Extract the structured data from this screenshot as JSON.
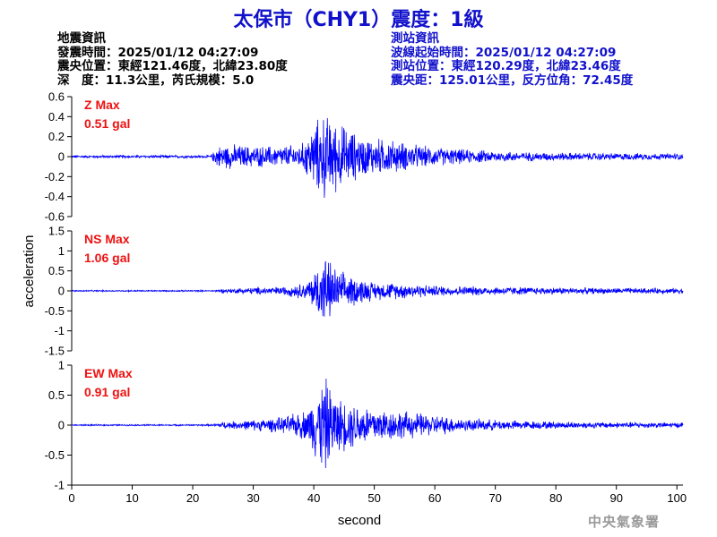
{
  "title": "太保市（CHY1）震度：1級",
  "quake_info": {
    "heading": "地震資訊",
    "origin_time": "發震時間：2025/01/12 04:27:09",
    "epicenter": "震央位置：東經121.46度，北緯23.80度",
    "depth_magnitude": "深　度：11.3公里，芮氏規模：5.0"
  },
  "station_info": {
    "heading": "測站資訊",
    "wave_start": "波線起始時間：2025/01/12 04:27:09",
    "station_location": "測站位置：東經120.29度，北緯23.46度",
    "distance": "震央距：125.01公里，反方位角：72.45度"
  },
  "agency": "中央氣象署",
  "colors": {
    "title": "#1111cc",
    "trace": "#0000ff",
    "max_label": "#ee1111",
    "station_info": "#1111cc"
  },
  "chart_data": {
    "type": "line",
    "xlabel": "second",
    "ylabel": "acceleration",
    "xlim": [
      0,
      101
    ],
    "x_ticks": [
      0,
      10,
      20,
      30,
      40,
      50,
      60,
      70,
      80,
      90,
      100
    ],
    "panels": [
      {
        "component": "Z",
        "max_name": "Z Max",
        "max_value": "0.51 gal",
        "ylim": [
          -0.6,
          0.6
        ],
        "y_ticks": [
          0.6,
          0.4,
          0.2,
          0,
          -0.2,
          -0.4,
          -0.6
        ],
        "y_tick_labels": [
          "0.6",
          "0.4",
          "0.2",
          "0",
          "-0.2",
          "-0.4",
          "-0.6"
        ],
        "envelope": [
          [
            0,
            0.015
          ],
          [
            23,
            0.015
          ],
          [
            24,
            0.12
          ],
          [
            26,
            0.14
          ],
          [
            30,
            0.12
          ],
          [
            34,
            0.12
          ],
          [
            38,
            0.14
          ],
          [
            40,
            0.35
          ],
          [
            41.5,
            0.5
          ],
          [
            43,
            0.42
          ],
          [
            45,
            0.35
          ],
          [
            48,
            0.22
          ],
          [
            52,
            0.2
          ],
          [
            58,
            0.12
          ],
          [
            65,
            0.08
          ],
          [
            75,
            0.05
          ],
          [
            90,
            0.04
          ],
          [
            101,
            0.035
          ]
        ]
      },
      {
        "component": "NS",
        "max_name": "NS Max",
        "max_value": "1.06 gal",
        "ylim": [
          -1.5,
          1.5
        ],
        "y_ticks": [
          1.5,
          1,
          0.5,
          0,
          -0.5,
          -1,
          -1.5
        ],
        "y_tick_labels": [
          "1.5",
          "1",
          "0.5",
          "0",
          "-0.5",
          "-1",
          "-1.5"
        ],
        "envelope": [
          [
            0,
            0.02
          ],
          [
            23,
            0.02
          ],
          [
            25,
            0.05
          ],
          [
            30,
            0.1
          ],
          [
            35,
            0.12
          ],
          [
            39,
            0.25
          ],
          [
            41,
            0.85
          ],
          [
            42,
            1.0
          ],
          [
            44,
            0.55
          ],
          [
            47,
            0.4
          ],
          [
            50,
            0.25
          ],
          [
            55,
            0.22
          ],
          [
            60,
            0.15
          ],
          [
            70,
            0.12
          ],
          [
            80,
            0.1
          ],
          [
            90,
            0.08
          ],
          [
            101,
            0.08
          ]
        ]
      },
      {
        "component": "EW",
        "max_name": "EW Max",
        "max_value": "0.91 gal",
        "ylim": [
          -1,
          1
        ],
        "y_ticks": [
          1,
          0.5,
          0,
          -0.5,
          -1
        ],
        "y_tick_labels": [
          "1",
          "0.5",
          "0",
          "-0.5",
          "-1"
        ],
        "envelope": [
          [
            0,
            0.012
          ],
          [
            23,
            0.015
          ],
          [
            25,
            0.06
          ],
          [
            30,
            0.1
          ],
          [
            35,
            0.15
          ],
          [
            39,
            0.3
          ],
          [
            41,
            0.8
          ],
          [
            42,
            0.88
          ],
          [
            44,
            0.5
          ],
          [
            48,
            0.4
          ],
          [
            52,
            0.3
          ],
          [
            58,
            0.22
          ],
          [
            65,
            0.12
          ],
          [
            75,
            0.08
          ],
          [
            85,
            0.06
          ],
          [
            101,
            0.05
          ]
        ]
      }
    ]
  }
}
